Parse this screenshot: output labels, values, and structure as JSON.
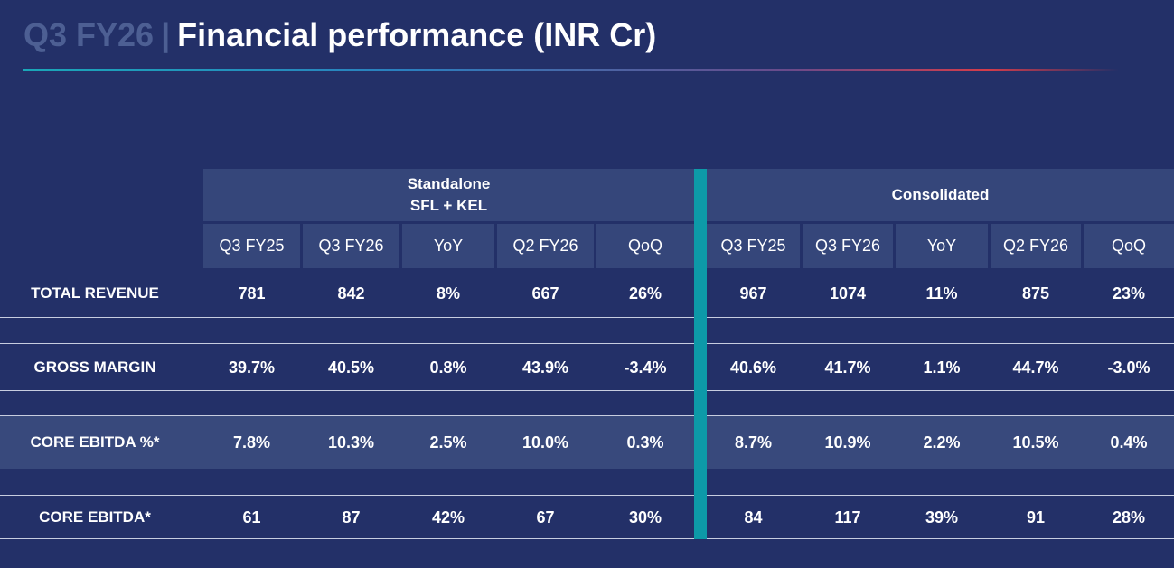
{
  "header": {
    "period": "Q3 FY26",
    "separator": "|",
    "title": "Financial performance  (INR Cr)"
  },
  "table": {
    "groups": [
      {
        "line1": "Standalone",
        "line2": "SFL + KEL"
      },
      {
        "line1": "Consolidated",
        "line2": ""
      }
    ],
    "columns": [
      "Q3 FY25",
      "Q3 FY26",
      "YoY",
      "Q2 FY26",
      "QoQ",
      "Q3 FY25",
      "Q3 FY26",
      "YoY",
      "Q2 FY26",
      "QoQ"
    ],
    "rows": [
      {
        "label": "TOTAL REVENUE",
        "values": [
          "781",
          "842",
          "8%",
          "667",
          "26%",
          "967",
          "1074",
          "11%",
          "875",
          "23%"
        ]
      },
      {
        "label": "GROSS MARGIN",
        "values": [
          "39.7%",
          "40.5%",
          "0.8%",
          "43.9%",
          "-3.4%",
          "40.6%",
          "41.7%",
          "1.1%",
          "44.7%",
          "-3.0%"
        ]
      },
      {
        "label": "CORE EBITDA %*",
        "values": [
          "7.8%",
          "10.3%",
          "2.5%",
          "10.0%",
          "0.3%",
          "8.7%",
          "10.9%",
          "2.2%",
          "10.5%",
          "0.4%"
        ]
      },
      {
        "label": "CORE EBITDA*",
        "values": [
          "61",
          "87",
          "42%",
          "67",
          "30%",
          "84",
          "117",
          "39%",
          "91",
          "28%"
        ]
      }
    ]
  },
  "colors": {
    "background": "#233068",
    "header_cell": "#35467a",
    "highlight_band": "#38497c",
    "divider": "#0d9aa8",
    "title_muted": "#4d5f93"
  }
}
